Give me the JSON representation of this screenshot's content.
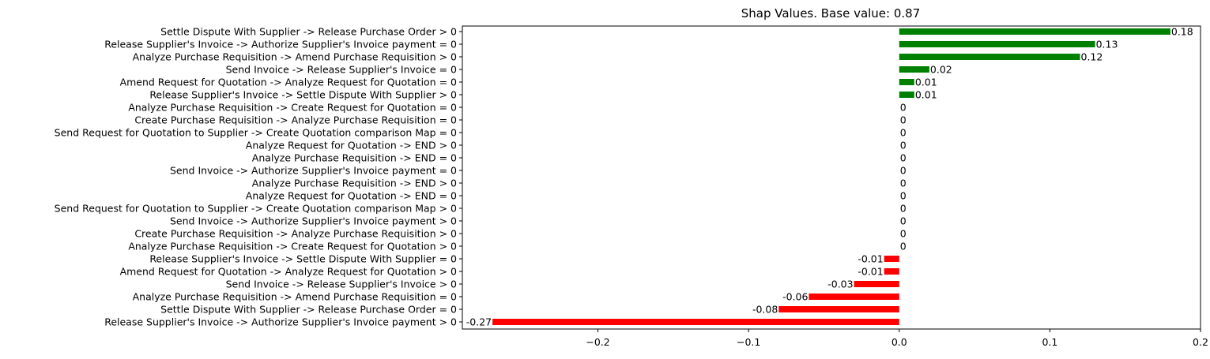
{
  "chart_data": {
    "type": "bar",
    "orientation": "horizontal",
    "title": "Shap Values. Base value: 0.87",
    "xlabel": "",
    "ylabel": "",
    "xlim": [
      -0.29,
      0.2
    ],
    "grid": false,
    "legend": "none",
    "x_ticks": [
      {
        "value": -0.2,
        "label": "−0.2"
      },
      {
        "value": -0.1,
        "label": "−0.1"
      },
      {
        "value": 0.0,
        "label": "0.0"
      },
      {
        "value": 0.1,
        "label": "0.1"
      },
      {
        "value": 0.2,
        "label": "0.2"
      }
    ],
    "colors": {
      "positive": "#008000",
      "negative": "#ff0000"
    },
    "categories": [
      "Settle Dispute With Supplier -> Release Purchase Order > 0",
      "Release Supplier's Invoice -> Authorize Supplier's Invoice payment = 0",
      "Analyze Purchase Requisition -> Amend Purchase Requisition > 0",
      "Send Invoice -> Release Supplier's Invoice = 0",
      "Amend Request for Quotation -> Analyze Request for Quotation = 0",
      "Release Supplier's Invoice -> Settle Dispute With Supplier > 0",
      "Analyze Purchase Requisition -> Create Request for Quotation = 0",
      "Create Purchase Requisition -> Analyze Purchase Requisition = 0",
      "Send Request for Quotation to Supplier -> Create Quotation comparison Map = 0",
      "Analyze Request for Quotation -> END > 0",
      "Analyze Purchase Requisition -> END = 0",
      "Send Invoice -> Authorize Supplier's Invoice payment = 0",
      "Analyze Purchase Requisition -> END > 0",
      "Analyze Request for Quotation -> END = 0",
      "Send Request for Quotation to Supplier -> Create Quotation comparison Map > 0",
      "Send Invoice -> Authorize Supplier's Invoice payment > 0",
      "Create Purchase Requisition -> Analyze Purchase Requisition > 0",
      "Analyze Purchase Requisition -> Create Request for Quotation > 0",
      "Release Supplier's Invoice -> Settle Dispute With Supplier = 0",
      "Amend Request for Quotation -> Analyze Request for Quotation > 0",
      "Send Invoice -> Release Supplier's Invoice > 0",
      "Analyze Purchase Requisition -> Amend Purchase Requisition = 0",
      "Settle Dispute With Supplier -> Release Purchase Order = 0",
      "Release Supplier's Invoice -> Authorize Supplier's Invoice payment > 0"
    ],
    "values": [
      0.18,
      0.13,
      0.12,
      0.02,
      0.01,
      0.01,
      0,
      0,
      0,
      0,
      0,
      0,
      0,
      0,
      0,
      0,
      0,
      0,
      -0.01,
      -0.01,
      -0.03,
      -0.06,
      -0.08,
      -0.27
    ],
    "data_labels": [
      "0.18",
      "0.13",
      "0.12",
      "0.02",
      "0.01",
      "0.01",
      "0",
      "0",
      "0",
      "0",
      "0",
      "0",
      "0",
      "0",
      "0",
      "0",
      "0",
      "0",
      "-0.01",
      "-0.01",
      "-0.03",
      "-0.06",
      "-0.08",
      "-0.27"
    ]
  }
}
